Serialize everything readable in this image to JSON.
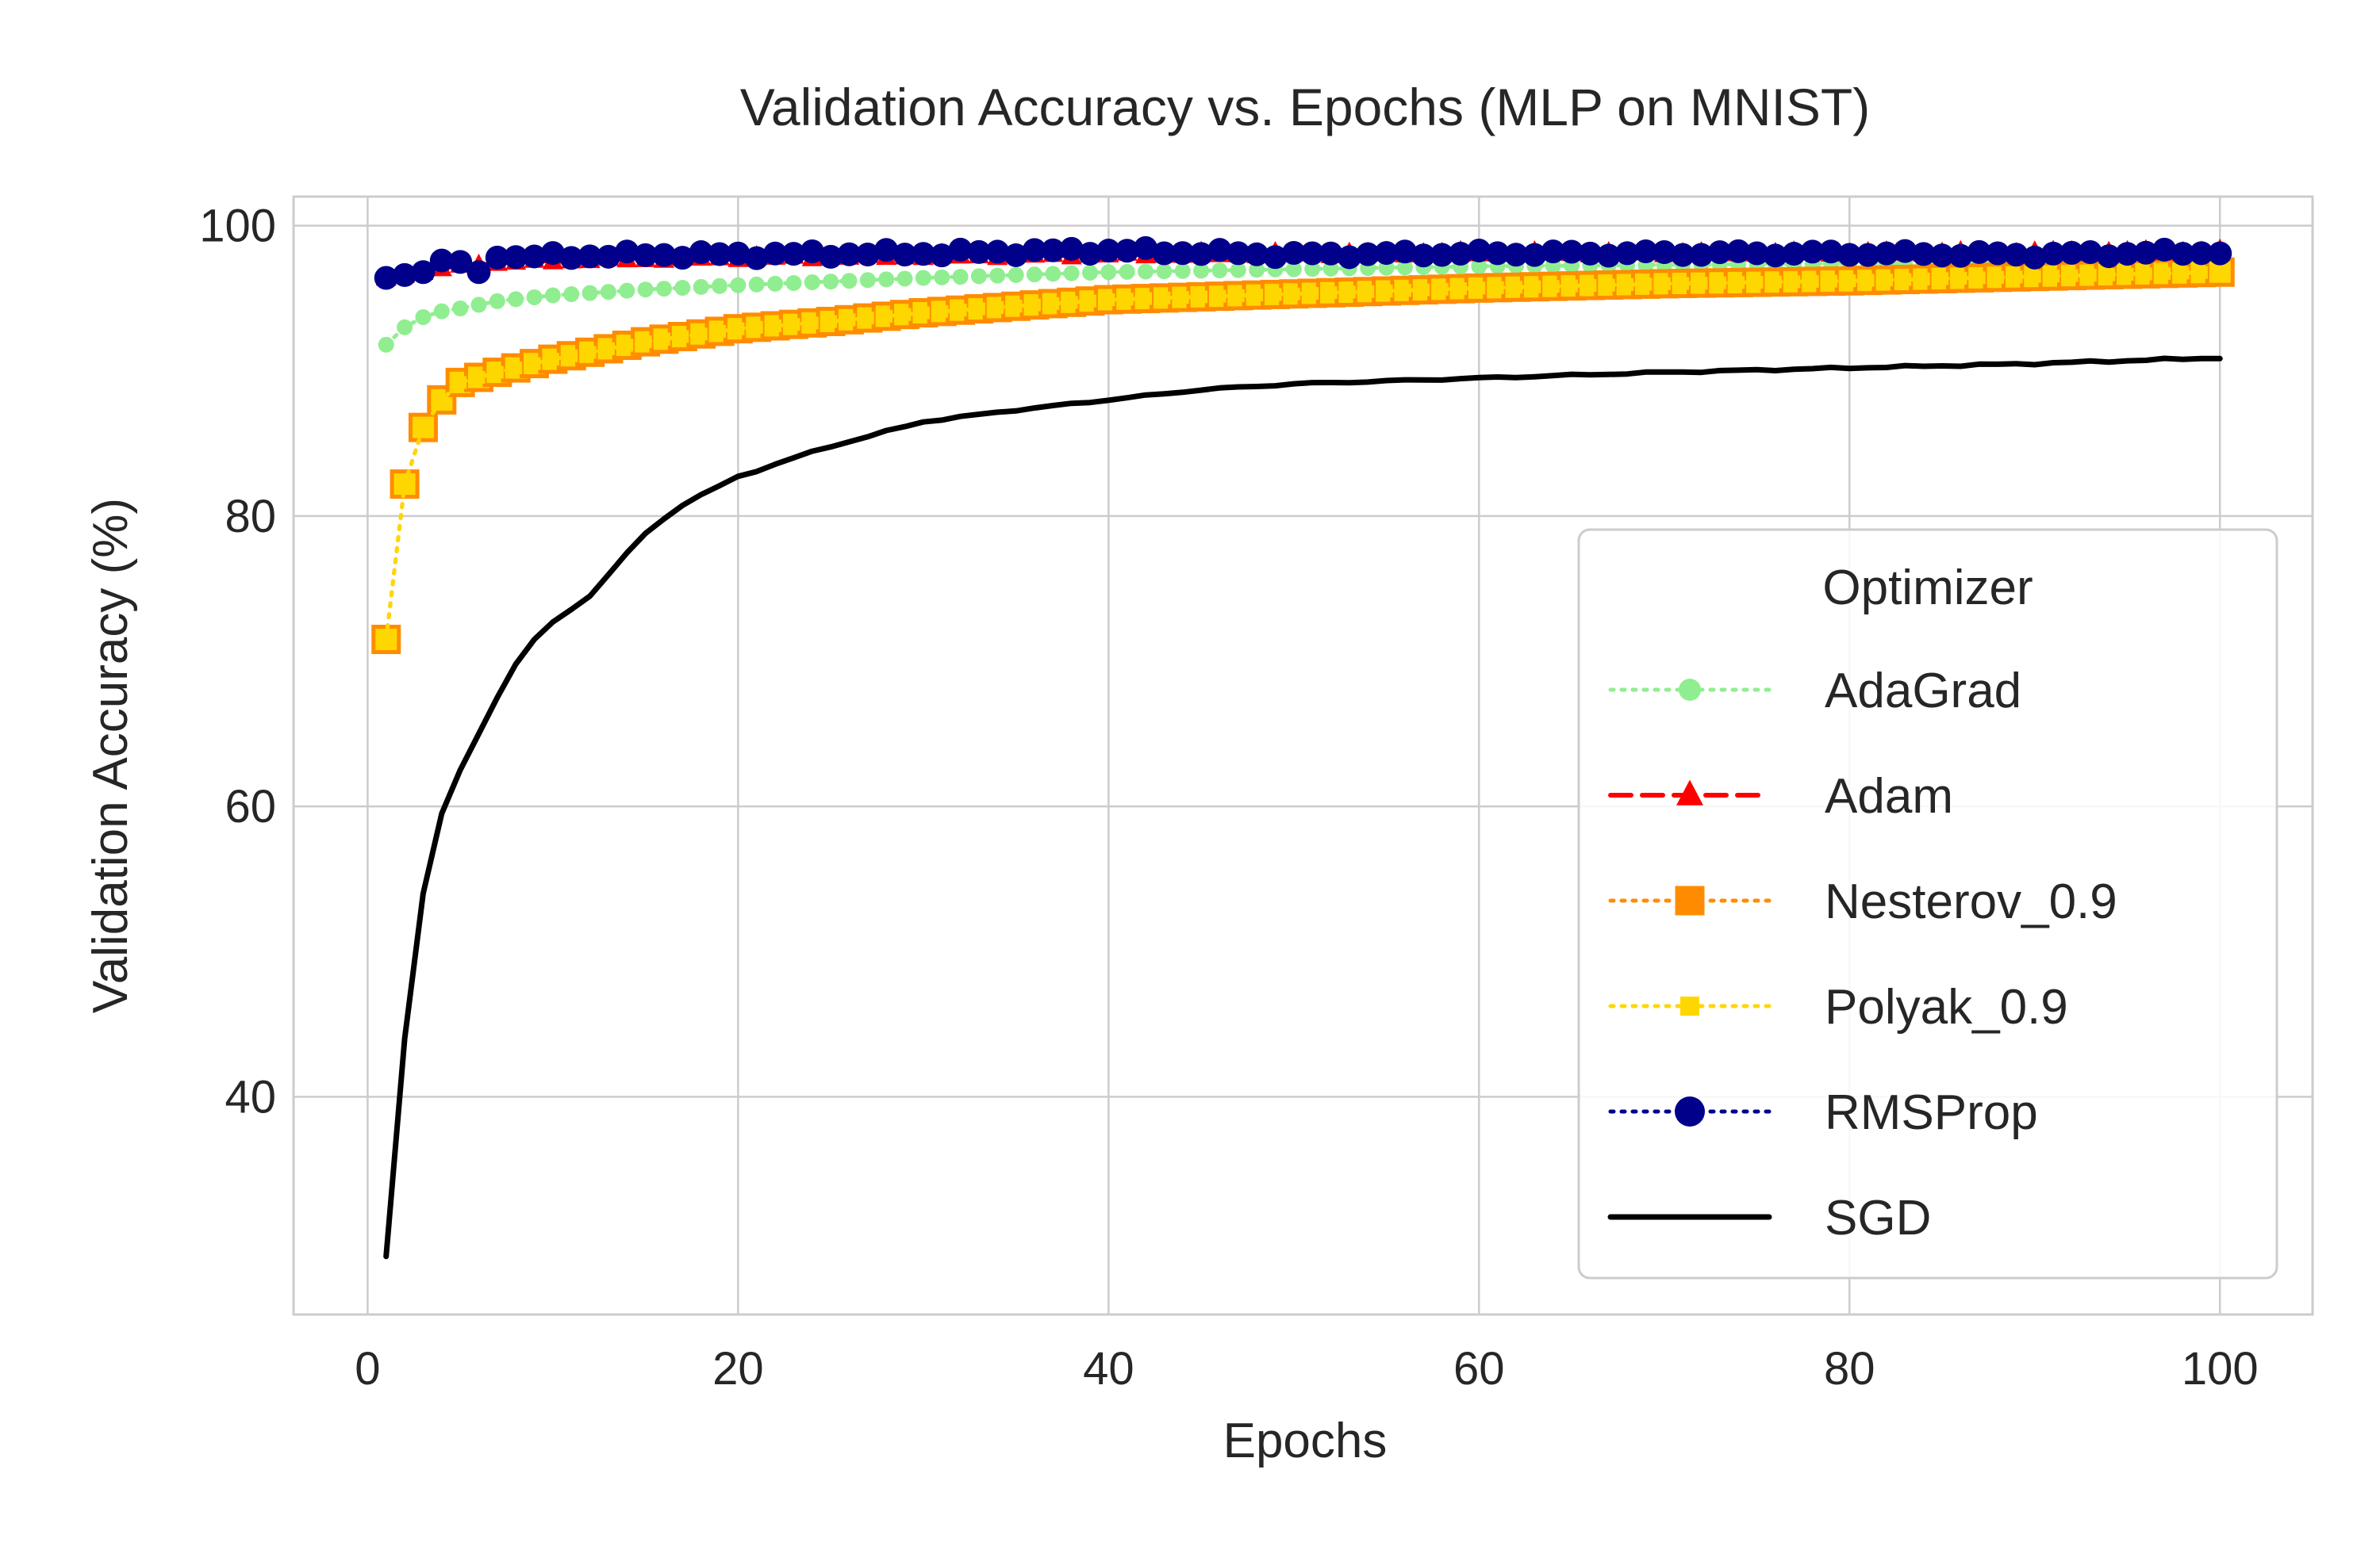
{
  "chart_data": {
    "type": "line",
    "title": "Validation Accuracy vs. Epochs (MLP on MNIST)",
    "xlabel": "Epochs",
    "ylabel": "Validation Accuracy (%)",
    "xlim": [
      -4,
      105
    ],
    "ylim": [
      25,
      102
    ],
    "xticks": [
      0,
      20,
      40,
      60,
      80,
      100
    ],
    "yticks": [
      40,
      60,
      80,
      100
    ],
    "grid": true,
    "legend": {
      "title": "Optimizer",
      "placement": "lower-right"
    },
    "series": [
      {
        "name": "AdaGrad",
        "color": "#90ee90",
        "marker": "circle",
        "linestyle": "dotted",
        "curve": "adagrad"
      },
      {
        "name": "Adam",
        "color": "#ff0000",
        "marker": "triangle",
        "linestyle": "dashed",
        "curve": "adam"
      },
      {
        "name": "Nesterov_0.9",
        "color": "#ff8c00",
        "marker": "square",
        "linestyle": "dotted",
        "curve": "nesterov"
      },
      {
        "name": "Polyak_0.9",
        "color": "#ffd700",
        "marker": "square",
        "linestyle": "dotted",
        "curve": "polyak"
      },
      {
        "name": "RMSProp",
        "color": "#00008b",
        "marker": "circle",
        "linestyle": "dotted",
        "curve": "rmsprop"
      },
      {
        "name": "SGD",
        "color": "#000000",
        "marker": "none",
        "linestyle": "solid",
        "curve": "sgd"
      }
    ],
    "anchors": {
      "adagrad": [
        [
          1,
          91.8
        ],
        [
          2,
          93.0
        ],
        [
          3,
          93.7
        ],
        [
          4,
          94.1
        ],
        [
          5,
          94.3
        ],
        [
          7,
          94.8
        ],
        [
          10,
          95.2
        ],
        [
          15,
          95.6
        ],
        [
          20,
          95.9
        ],
        [
          30,
          96.4
        ],
        [
          40,
          96.8
        ],
        [
          50,
          97.0
        ],
        [
          60,
          97.2
        ],
        [
          70,
          97.3
        ],
        [
          80,
          97.4
        ],
        [
          100,
          97.6
        ]
      ],
      "adam": [
        [
          1,
          96.4
        ],
        [
          3,
          96.8
        ],
        [
          5,
          97.3
        ],
        [
          10,
          97.6
        ],
        [
          20,
          97.8
        ],
        [
          40,
          98.0
        ],
        [
          60,
          98.1
        ],
        [
          80,
          98.1
        ],
        [
          100,
          98.2
        ]
      ],
      "nesterov": [
        [
          1,
          71.5
        ],
        [
          2,
          82.2
        ],
        [
          3,
          86.1
        ],
        [
          4,
          88.0
        ],
        [
          5,
          89.2
        ],
        [
          7,
          89.9
        ],
        [
          10,
          90.8
        ],
        [
          15,
          92.0
        ],
        [
          20,
          92.9
        ],
        [
          25,
          93.4
        ],
        [
          30,
          94.0
        ],
        [
          40,
          94.9
        ],
        [
          50,
          95.3
        ],
        [
          60,
          95.7
        ],
        [
          70,
          96.0
        ],
        [
          80,
          96.2
        ],
        [
          90,
          96.5
        ],
        [
          100,
          96.8
        ]
      ],
      "polyak": [
        [
          1,
          71.5
        ],
        [
          2,
          82.2
        ],
        [
          3,
          86.1
        ],
        [
          4,
          88.0
        ],
        [
          5,
          89.2
        ],
        [
          7,
          89.9
        ],
        [
          10,
          90.8
        ],
        [
          15,
          92.0
        ],
        [
          20,
          92.9
        ],
        [
          25,
          93.4
        ],
        [
          30,
          94.0
        ],
        [
          40,
          94.9
        ],
        [
          50,
          95.3
        ],
        [
          60,
          95.7
        ],
        [
          70,
          96.0
        ],
        [
          80,
          96.2
        ],
        [
          90,
          96.5
        ],
        [
          100,
          96.8
        ]
      ],
      "rmsprop": [
        [
          1,
          96.4
        ],
        [
          2,
          96.6
        ],
        [
          3,
          96.8
        ],
        [
          4,
          97.6
        ],
        [
          5,
          97.5
        ],
        [
          6,
          96.8
        ],
        [
          7,
          97.8
        ],
        [
          10,
          97.9
        ],
        [
          15,
          98.0
        ],
        [
          20,
          98.0
        ],
        [
          30,
          98.1
        ],
        [
          40,
          98.3
        ],
        [
          50,
          98.0
        ],
        [
          60,
          98.1
        ],
        [
          70,
          98.1
        ],
        [
          80,
          98.1
        ],
        [
          90,
          98.0
        ],
        [
          100,
          98.2
        ]
      ],
      "sgd": [
        [
          1,
          29.0
        ],
        [
          2,
          44.0
        ],
        [
          3,
          54.0
        ],
        [
          4,
          59.5
        ],
        [
          5,
          62.5
        ],
        [
          6,
          65.0
        ],
        [
          7,
          67.5
        ],
        [
          8,
          69.8
        ],
        [
          9,
          71.5
        ],
        [
          10,
          72.7
        ],
        [
          12,
          74.5
        ],
        [
          13,
          76.0
        ],
        [
          15,
          78.8
        ],
        [
          17,
          80.8
        ],
        [
          20,
          82.7
        ],
        [
          23,
          84.0
        ],
        [
          25,
          84.8
        ],
        [
          30,
          86.5
        ],
        [
          35,
          87.3
        ],
        [
          40,
          88.0
        ],
        [
          45,
          88.7
        ],
        [
          50,
          89.1
        ],
        [
          55,
          89.3
        ],
        [
          60,
          89.5
        ],
        [
          70,
          89.9
        ],
        [
          80,
          90.2
        ],
        [
          90,
          90.5
        ],
        [
          100,
          90.9
        ]
      ]
    }
  }
}
